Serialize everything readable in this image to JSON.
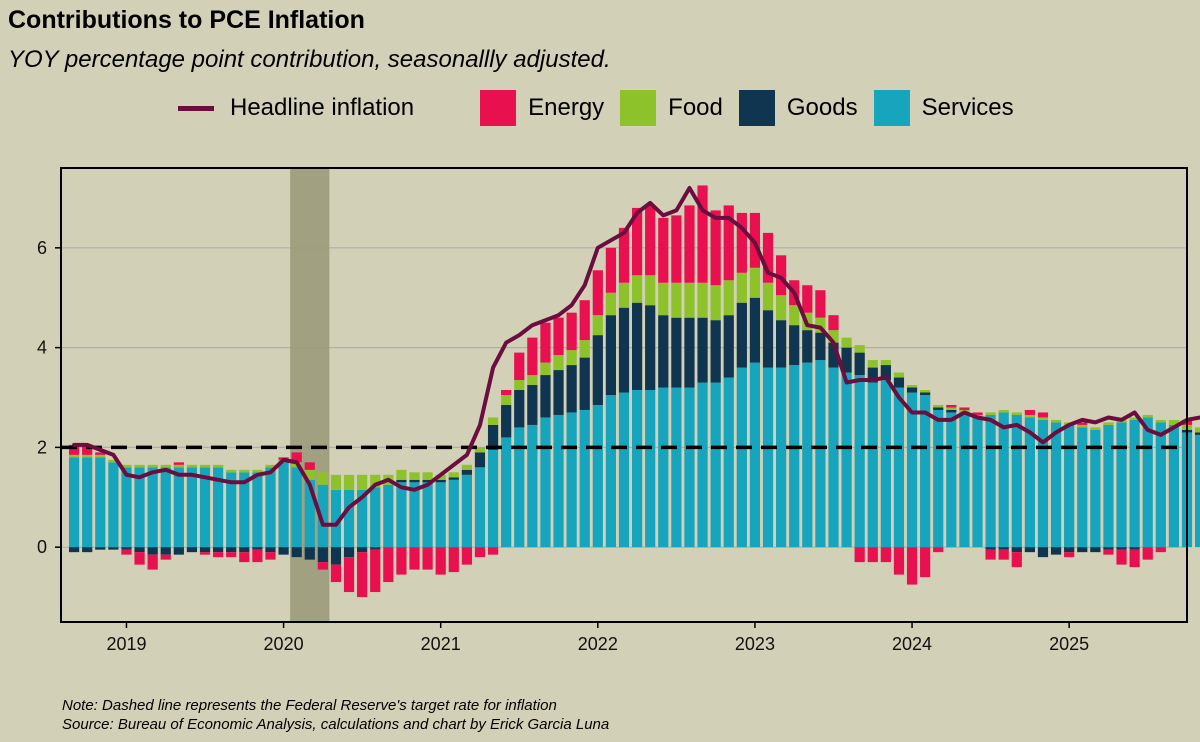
{
  "title": "Contributions to PCE Inflation",
  "subtitle": "YOY percentage point contribution, seasonallly adjusted.",
  "legend": {
    "headline": "Headline inflation",
    "energy": "Energy",
    "food": "Food",
    "goods": "Goods",
    "services": "Services"
  },
  "colors": {
    "background": "#d2d1b8",
    "energy": "#e8104f",
    "food": "#8dc22b",
    "goods": "#0f3550",
    "services": "#17a5bd",
    "headline": "#6b0d3e",
    "recession": "#999977"
  },
  "notes": {
    "note": "Note: Dashed line represents the Federal Reserve's target rate for inflation",
    "source": "Source: Bureau of Economic Analysis, calculations and chart by Erick Garcia Luna"
  },
  "chart_data": {
    "type": "bar",
    "stacked": true,
    "x_start": "2018-09",
    "x_end": "2025-07",
    "frequency": "monthly",
    "xlim": [
      "2018-08",
      "2025-10"
    ],
    "ylim": [
      -1.5,
      7.6
    ],
    "x_ticks": [
      "2019",
      "2020",
      "2021",
      "2022",
      "2023",
      "2024",
      "2025"
    ],
    "y_ticks": [
      0,
      2,
      4,
      6
    ],
    "target_line": 2,
    "recession_shading": [
      "2020-02",
      "2020-04"
    ],
    "grid": true,
    "legend_position": "top",
    "series": [
      {
        "name": "Services",
        "values": [
          1.8,
          1.8,
          1.8,
          1.7,
          1.6,
          1.6,
          1.6,
          1.6,
          1.6,
          1.6,
          1.6,
          1.6,
          1.5,
          1.5,
          1.5,
          1.6,
          1.7,
          1.6,
          1.35,
          1.25,
          1.15,
          1.15,
          1.15,
          1.2,
          1.25,
          1.3,
          1.3,
          1.3,
          1.3,
          1.35,
          1.45,
          1.6,
          1.95,
          2.2,
          2.4,
          2.45,
          2.6,
          2.65,
          2.7,
          2.75,
          2.85,
          3.05,
          3.1,
          3.15,
          3.15,
          3.2,
          3.2,
          3.2,
          3.3,
          3.3,
          3.4,
          3.6,
          3.7,
          3.6,
          3.6,
          3.65,
          3.7,
          3.75,
          3.6,
          3.5,
          3.45,
          3.3,
          3.35,
          3.2,
          3.1,
          3.05,
          2.75,
          2.7,
          2.7,
          2.6,
          2.65,
          2.7,
          2.65,
          2.6,
          2.55,
          2.5,
          2.45,
          2.4,
          2.35,
          2.45,
          2.5,
          2.55,
          2.6,
          2.5,
          2.45,
          2.3,
          2.25,
          2.25,
          2.3,
          2.3,
          2.3
        ]
      },
      {
        "name": "Goods",
        "values": [
          -0.1,
          -0.1,
          -0.05,
          -0.05,
          -0.05,
          -0.1,
          -0.15,
          -0.15,
          -0.15,
          -0.1,
          -0.1,
          -0.1,
          -0.1,
          -0.1,
          -0.05,
          -0.1,
          -0.15,
          -0.2,
          -0.25,
          -0.3,
          -0.35,
          -0.2,
          -0.1,
          -0.05,
          0.0,
          0.05,
          0.05,
          0.05,
          0.05,
          0.05,
          0.1,
          0.3,
          0.5,
          0.65,
          0.75,
          0.8,
          0.85,
          0.9,
          0.95,
          1.05,
          1.4,
          1.6,
          1.7,
          1.75,
          1.7,
          1.45,
          1.4,
          1.4,
          1.3,
          1.25,
          1.25,
          1.3,
          1.3,
          1.15,
          0.95,
          0.8,
          0.65,
          0.55,
          0.5,
          0.5,
          0.45,
          0.3,
          0.3,
          0.2,
          0.1,
          0.05,
          0.05,
          0.05,
          0.0,
          0.0,
          -0.05,
          -0.05,
          -0.1,
          -0.1,
          -0.2,
          -0.15,
          -0.1,
          -0.1,
          -0.1,
          -0.05,
          -0.05,
          -0.05,
          0.0,
          0.0,
          0.0,
          0.05,
          0.05,
          0.05,
          0.05,
          0.1,
          0.2
        ]
      },
      {
        "name": "Food",
        "values": [
          0.05,
          0.05,
          0.05,
          0.05,
          0.05,
          0.05,
          0.05,
          0.05,
          0.05,
          0.05,
          0.05,
          0.05,
          0.05,
          0.05,
          0.05,
          0.05,
          0.05,
          0.1,
          0.2,
          0.25,
          0.3,
          0.3,
          0.3,
          0.25,
          0.2,
          0.2,
          0.15,
          0.15,
          0.1,
          0.1,
          0.1,
          0.1,
          0.15,
          0.2,
          0.2,
          0.2,
          0.25,
          0.3,
          0.3,
          0.35,
          0.4,
          0.45,
          0.5,
          0.55,
          0.6,
          0.65,
          0.7,
          0.7,
          0.7,
          0.7,
          0.7,
          0.6,
          0.6,
          0.55,
          0.5,
          0.4,
          0.35,
          0.3,
          0.25,
          0.2,
          0.15,
          0.15,
          0.1,
          0.1,
          0.05,
          0.05,
          0.05,
          0.05,
          0.05,
          0.05,
          0.05,
          0.05,
          0.05,
          0.05,
          0.05,
          0.05,
          0.05,
          0.05,
          0.05,
          0.05,
          0.05,
          0.05,
          0.05,
          0.05,
          0.1,
          0.1,
          0.1,
          0.1,
          0.1,
          0.1,
          0.1
        ]
      },
      {
        "name": "Energy",
        "values": [
          0.2,
          0.2,
          0.05,
          0.0,
          -0.1,
          -0.25,
          -0.3,
          -0.1,
          0.05,
          0.0,
          -0.05,
          -0.1,
          -0.1,
          -0.2,
          -0.25,
          -0.15,
          0.05,
          0.2,
          0.15,
          -0.15,
          -0.35,
          -0.7,
          -0.9,
          -0.85,
          -0.7,
          -0.55,
          -0.45,
          -0.45,
          -0.55,
          -0.5,
          -0.35,
          -0.2,
          -0.15,
          0.1,
          0.55,
          0.75,
          0.8,
          0.75,
          0.75,
          0.8,
          0.9,
          0.9,
          1.1,
          1.35,
          1.4,
          1.3,
          1.35,
          1.55,
          1.95,
          1.5,
          1.5,
          1.2,
          1.1,
          1.0,
          0.8,
          0.5,
          0.55,
          0.55,
          0.3,
          0.0,
          -0.3,
          -0.3,
          -0.3,
          -0.55,
          -0.75,
          -0.6,
          -0.1,
          0.05,
          0.05,
          0.05,
          -0.2,
          -0.2,
          -0.3,
          0.1,
          0.1,
          0.0,
          -0.1,
          0.05,
          0.0,
          -0.1,
          -0.3,
          -0.35,
          -0.25,
          -0.1,
          0.0,
          0.1,
          0.0,
          0.0,
          -0.1,
          -0.15,
          -0.1
        ]
      },
      {
        "name": "Headline inflation",
        "type": "line",
        "values": [
          2.05,
          2.05,
          1.95,
          1.85,
          1.45,
          1.4,
          1.5,
          1.55,
          1.45,
          1.45,
          1.4,
          1.35,
          1.3,
          1.3,
          1.45,
          1.5,
          1.75,
          1.7,
          1.25,
          0.45,
          0.45,
          0.8,
          1.0,
          1.25,
          1.35,
          1.2,
          1.15,
          1.25,
          1.45,
          1.65,
          1.85,
          2.45,
          3.6,
          4.1,
          4.25,
          4.45,
          4.55,
          4.65,
          4.85,
          5.25,
          6.0,
          6.15,
          6.3,
          6.7,
          6.9,
          6.65,
          6.75,
          7.2,
          6.75,
          6.6,
          6.6,
          6.4,
          6.1,
          5.5,
          5.4,
          5.1,
          4.45,
          4.4,
          4.1,
          3.3,
          3.35,
          3.35,
          3.4,
          3.0,
          2.7,
          2.7,
          2.55,
          2.55,
          2.7,
          2.6,
          2.55,
          2.4,
          2.45,
          2.3,
          2.1,
          2.3,
          2.45,
          2.55,
          2.5,
          2.6,
          2.55,
          2.7,
          2.35,
          2.25,
          2.4,
          2.55,
          2.6,
          2.6,
          2.6,
          2.55,
          2.6
        ]
      }
    ]
  }
}
